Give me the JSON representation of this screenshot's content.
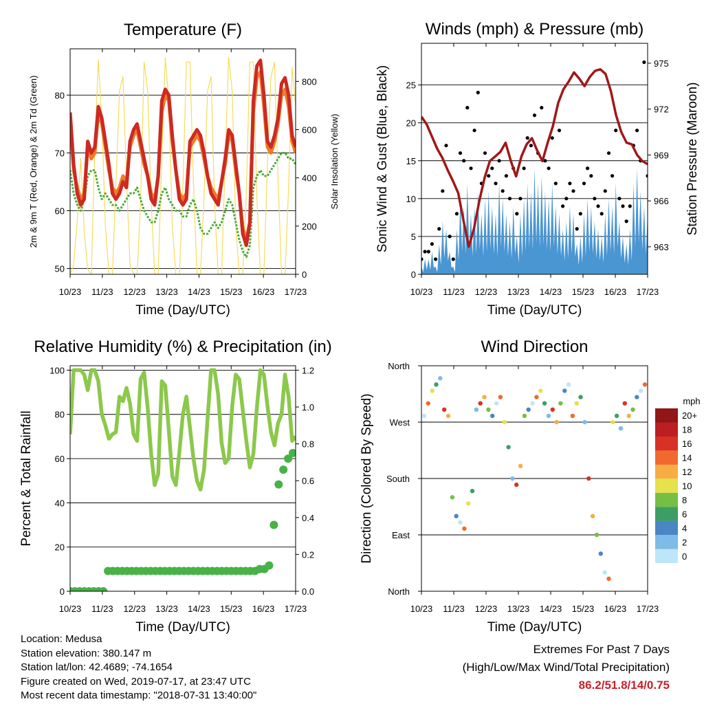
{
  "chart_data": [
    {
      "type": "line",
      "title": "Temperature (F)",
      "xlabel": "Time (Day/UTC)",
      "ylabel": "2m & 9m T (Red, Orange) & 2m Td (Green)",
      "ylabel_right": "Solar Insolation (Yellow)",
      "x_ticks": [
        "10/23",
        "11/23",
        "12/23",
        "13/23",
        "14/23",
        "15/23",
        "16/23",
        "17/23"
      ],
      "y_ticks": [
        50,
        60,
        70,
        80
      ],
      "y_ticks_right": [
        0,
        200,
        400,
        600,
        800
      ],
      "ylim": [
        49,
        88
      ],
      "ylim_right": [
        0,
        935
      ],
      "series": [
        {
          "color": "#cc2a22",
          "values": [
            77,
            68,
            63,
            61,
            62,
            72,
            70,
            71,
            78,
            76,
            72,
            68,
            63,
            62,
            63,
            65,
            64,
            72,
            74,
            75,
            72,
            69,
            66,
            62,
            61,
            66,
            79,
            81,
            80,
            73,
            67,
            62,
            61,
            62,
            72,
            73,
            74,
            73,
            70,
            66,
            63,
            62,
            61,
            65,
            69,
            74,
            73,
            68,
            63,
            56,
            54,
            58,
            79,
            85,
            86,
            80,
            72,
            71,
            73,
            76,
            82,
            83,
            80,
            73,
            71
          ]
        },
        {
          "color": "#f07a28",
          "values": [
            76,
            67,
            64,
            62,
            63,
            71,
            69,
            70,
            77,
            75,
            71,
            67,
            64,
            63,
            64,
            66,
            65,
            71,
            73,
            74,
            71,
            68,
            66,
            63,
            62,
            66,
            77,
            80,
            79,
            72,
            67,
            63,
            62,
            63,
            71,
            72,
            73,
            72,
            69,
            66,
            64,
            63,
            62,
            65,
            68,
            73,
            72,
            67,
            63,
            57,
            55,
            58,
            77,
            83,
            84,
            78,
            71,
            70,
            72,
            75,
            80,
            81,
            78,
            72,
            70
          ]
        },
        {
          "color": "#4aab3a",
          "values": [
            67,
            63,
            61,
            60,
            62,
            66,
            67,
            67,
            64,
            62,
            63,
            62,
            61,
            61,
            60,
            61,
            62,
            63,
            63,
            64,
            62,
            60,
            59,
            58,
            58,
            60,
            63,
            64,
            62,
            61,
            60,
            60,
            59,
            59,
            61,
            62,
            60,
            57,
            56,
            56,
            57,
            58,
            57,
            58,
            60,
            62,
            61,
            58,
            55,
            53,
            52,
            54,
            64,
            66,
            67,
            66,
            66,
            67,
            68,
            69,
            70,
            70,
            69,
            69,
            68
          ]
        },
        {
          "color": "#f5dc5a",
          "values": [
            0,
            40,
            220,
            480,
            180,
            20,
            0,
            520,
            890,
            640,
            200,
            0,
            0,
            380,
            760,
            820,
            400,
            40,
            0,
            0,
            300,
            880,
            760,
            300,
            0,
            0,
            480,
            900,
            720,
            200,
            0,
            0,
            350,
            880,
            880,
            380,
            0,
            0,
            320,
            760,
            820,
            300,
            0,
            0,
            480,
            900,
            760,
            200,
            0,
            0,
            340,
            880,
            880,
            320,
            0,
            0,
            460,
            820,
            880,
            400,
            0,
            0,
            360,
            860,
            700
          ]
        }
      ]
    },
    {
      "type": "scatter",
      "title": "Winds (mph) & Pressure (mb)",
      "xlabel": "Time (Day/UTC)",
      "ylabel": "Sonic Wind & Gust (Blue, Black)",
      "ylabel_right": "Station Pressure (Maroon)",
      "x_ticks": [
        "10/23",
        "11/23",
        "12/23",
        "13/23",
        "14/23",
        "15/23",
        "16/23",
        "17/23"
      ],
      "y_ticks": [
        0,
        5,
        10,
        15,
        20,
        25
      ],
      "y_ticks_right": [
        963,
        966,
        969,
        972,
        975
      ],
      "ylim": [
        0,
        30.5
      ],
      "ylim_right": [
        961.2,
        976.3
      ],
      "series": [
        {
          "color": "#4a96d2",
          "values": [
            1,
            2,
            2,
            3,
            1,
            4,
            7,
            6,
            3,
            1,
            6,
            10,
            9,
            12,
            8,
            9,
            11,
            8,
            10,
            11,
            9,
            8,
            12,
            10,
            8,
            7,
            9,
            5,
            8,
            10,
            12,
            11,
            14,
            12,
            13,
            11,
            10,
            12,
            9,
            8,
            6,
            7,
            9,
            8,
            4,
            5,
            8,
            10,
            9,
            7,
            6,
            5,
            8,
            10,
            9,
            12,
            7,
            5,
            4,
            6,
            12,
            14,
            11,
            9,
            8
          ]
        },
        {
          "color": "#000000",
          "values": [
            2,
            3,
            3,
            4,
            2,
            6,
            11,
            17,
            5,
            2,
            8,
            16,
            15,
            22,
            14,
            19,
            24,
            12,
            16,
            13,
            14,
            12,
            15,
            11,
            13,
            10,
            14,
            8,
            10,
            14,
            18,
            17,
            21,
            16,
            22,
            15,
            14,
            18,
            12,
            19,
            9,
            10,
            12,
            11,
            6,
            8,
            12,
            14,
            13,
            10,
            9,
            8,
            11,
            16,
            13,
            19,
            10,
            9,
            7,
            9,
            17,
            19,
            15,
            28,
            13
          ]
        },
        {
          "color": "#a01818",
          "values": [
            971.5,
            971.0,
            970.2,
            969.4,
            968.8,
            968.0,
            967.3,
            966.5,
            964.7,
            963.0,
            964.2,
            966.0,
            967.5,
            968.6,
            968.9,
            969.2,
            969.8,
            968.6,
            967.6,
            968.9,
            969.7,
            970.1,
            969.3,
            968.6,
            969.8,
            970.9,
            972.4,
            973.3,
            973.8,
            974.4,
            974.0,
            973.5,
            974.1,
            974.5,
            974.6,
            974.3,
            973.2,
            971.6,
            970.5,
            969.8,
            969.7,
            969.0,
            968.6,
            968.4
          ]
        }
      ]
    },
    {
      "type": "line",
      "title": "Relative Humidity (%) & Precipitation (in)",
      "xlabel": "Time (Day/UTC)",
      "ylabel": "Percent & Total Rainfall",
      "x_ticks": [
        "10/23",
        "11/23",
        "12/23",
        "13/23",
        "14/23",
        "15/23",
        "16/23",
        "17/23"
      ],
      "y_ticks": [
        0,
        20,
        40,
        60,
        80,
        100
      ],
      "y_ticks_right": [
        "0.0",
        "0.2",
        "0.4",
        "0.6",
        "0.8",
        "1.0",
        "1.2"
      ],
      "ylim": [
        0,
        102
      ],
      "ylim_right": [
        0,
        1.224
      ],
      "series": [
        {
          "color": "#8cc84b",
          "values": [
            71,
            100,
            100,
            100,
            98,
            91,
            100,
            100,
            95,
            80,
            75,
            69,
            71,
            72,
            88,
            86,
            92,
            85,
            71,
            68,
            96,
            99,
            83,
            62,
            48,
            53,
            95,
            93,
            73,
            52,
            48,
            63,
            80,
            88,
            74,
            60,
            50,
            46,
            55,
            78,
            100,
            100,
            89,
            67,
            58,
            60,
            84,
            98,
            96,
            82,
            68,
            56,
            62,
            83,
            100,
            98,
            84,
            72,
            66,
            76,
            80,
            98,
            88,
            68,
            70
          ]
        },
        {
          "color": "#47b247",
          "values": [
            0,
            0,
            0,
            0,
            0,
            0,
            0,
            0,
            0.11,
            0.11,
            0.11,
            0.11,
            0.11,
            0.11,
            0.11,
            0.11,
            0.11,
            0.11,
            0.11,
            0.11,
            0.11,
            0.11,
            0.11,
            0.11,
            0.11,
            0.11,
            0.11,
            0.11,
            0.11,
            0.11,
            0.11,
            0.11,
            0.11,
            0.11,
            0.11,
            0.11,
            0.11,
            0.11,
            0.11,
            0.11,
            0.12,
            0.12,
            0.14,
            0.36,
            0.58,
            0.66,
            0.72,
            0.75
          ]
        }
      ]
    },
    {
      "type": "scatter",
      "title": "Wind Direction",
      "xlabel": "Time (Day/UTC)",
      "ylabel": "Direction (Colored By Speed)",
      "x_ticks": [
        "10/23",
        "11/23",
        "12/23",
        "13/23",
        "14/23",
        "15/23",
        "16/23",
        "17/23"
      ],
      "y_ticks": [
        "North",
        "East",
        "South",
        "West",
        "North"
      ],
      "colorbar_title": "mph",
      "colorbar_labels": [
        "0",
        "2",
        "4",
        "6",
        "8",
        "10",
        "12",
        "14",
        "16",
        "18",
        "20+"
      ],
      "colorbar_colors": [
        "#bde6f8",
        "#7ebbe7",
        "#4a86c3",
        "#3c9e64",
        "#74bf44",
        "#e6e14c",
        "#f7ad43",
        "#f06a2d",
        "#d83224",
        "#bb1f22",
        "#921518"
      ],
      "series": [
        {
          "name_hidden": true,
          "values": [
            280,
            300,
            320,
            330,
            340,
            290,
            280,
            150,
            120,
            110,
            100,
            140,
            160,
            290,
            300,
            310,
            290,
            280,
            300,
            310,
            270,
            230,
            180,
            170,
            200,
            280,
            290,
            300,
            310,
            320,
            300,
            280,
            290,
            270,
            300,
            320,
            330,
            280,
            300,
            310,
            270,
            180,
            120,
            90,
            60,
            30,
            20,
            270,
            280,
            260,
            300,
            280,
            290,
            310,
            320,
            330
          ]
        }
      ]
    }
  ],
  "info": {
    "location": "Location: Medusa",
    "elevation": "Station elevation: 380.147 m",
    "latlon": "Station lat/lon: 42.4689; -74.1654",
    "created": "Figure created on Wed, 2019-07-17, at 23:47 UTC",
    "recent": "Most recent data timestamp: \"2018-07-31 13:40:00\""
  },
  "extremes": {
    "heading": "Extremes For Past 7 Days",
    "subheading": "(High/Low/Max Wind/Total Precipitation)",
    "values": "86.2/51.8/14/0.75",
    "color": "#c8202a"
  }
}
